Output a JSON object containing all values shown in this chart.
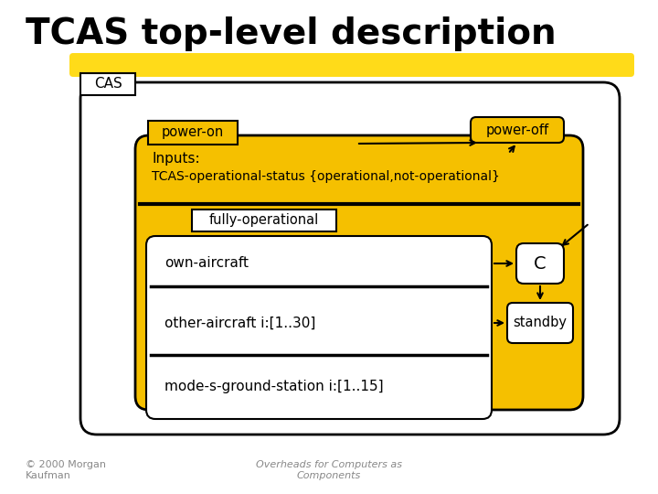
{
  "title": "TCAS top-level description",
  "title_fontsize": 28,
  "title_fontweight": "bold",
  "gold": "#F5C000",
  "white": "#FFFFFF",
  "black": "#000000",
  "cas_label": "CAS",
  "power_on_label": "power-on",
  "power_off_label": "power-off",
  "inputs_line1": "Inputs:",
  "inputs_line2": "TCAS-operational-status {operational,not-operational}",
  "fully_operational_label": "fully-operational",
  "own_aircraft_label": "own-aircraft",
  "other_aircraft_label": "other-aircraft i:[1..30]",
  "mode_s_label": "mode-s-ground-station i:[1..15]",
  "c_label": "C",
  "standby_label": "standby",
  "copyright": "© 2000 Morgan\nKaufman",
  "overheads": "Overheads for Computers as\nComponents"
}
